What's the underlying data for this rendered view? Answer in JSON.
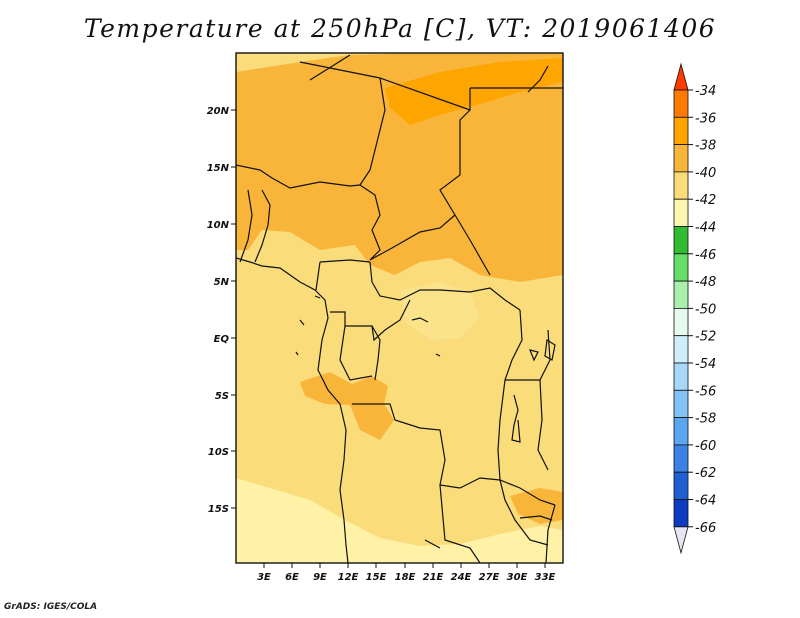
{
  "title": "Temperature at 250hPa [C], VT: 2019061406",
  "credit": "GrADS: IGES/COLA",
  "map": {
    "lat_ticks": [
      "20N",
      "15N",
      "10N",
      "5N",
      "EQ",
      "5S",
      "10S",
      "15S"
    ],
    "lon_ticks": [
      "3E",
      "6E",
      "9E",
      "12E",
      "15E",
      "18E",
      "21E",
      "24E",
      "27E",
      "30E",
      "33E"
    ]
  },
  "colorbar": {
    "levels": [
      "-34",
      "-36",
      "-38",
      "-40",
      "-42",
      "-44",
      "-46",
      "-48",
      "-50",
      "-52",
      "-54",
      "-56",
      "-58",
      "-60",
      "-62",
      "-64",
      "-66"
    ],
    "colors": [
      "#ff3a00",
      "#ff7a00",
      "#ffa500",
      "#f8b53a",
      "#fadc7a",
      "#fff7b0",
      "#33bb33",
      "#66dd66",
      "#aaf0aa",
      "#e6fbf0",
      "#cfeefc",
      "#a8d8f8",
      "#82c2f4",
      "#5aa6ef",
      "#3b82e4",
      "#1f5fd4",
      "#0d3cc0",
      "#0a1a7a",
      "#e8e4f4"
    ]
  }
}
